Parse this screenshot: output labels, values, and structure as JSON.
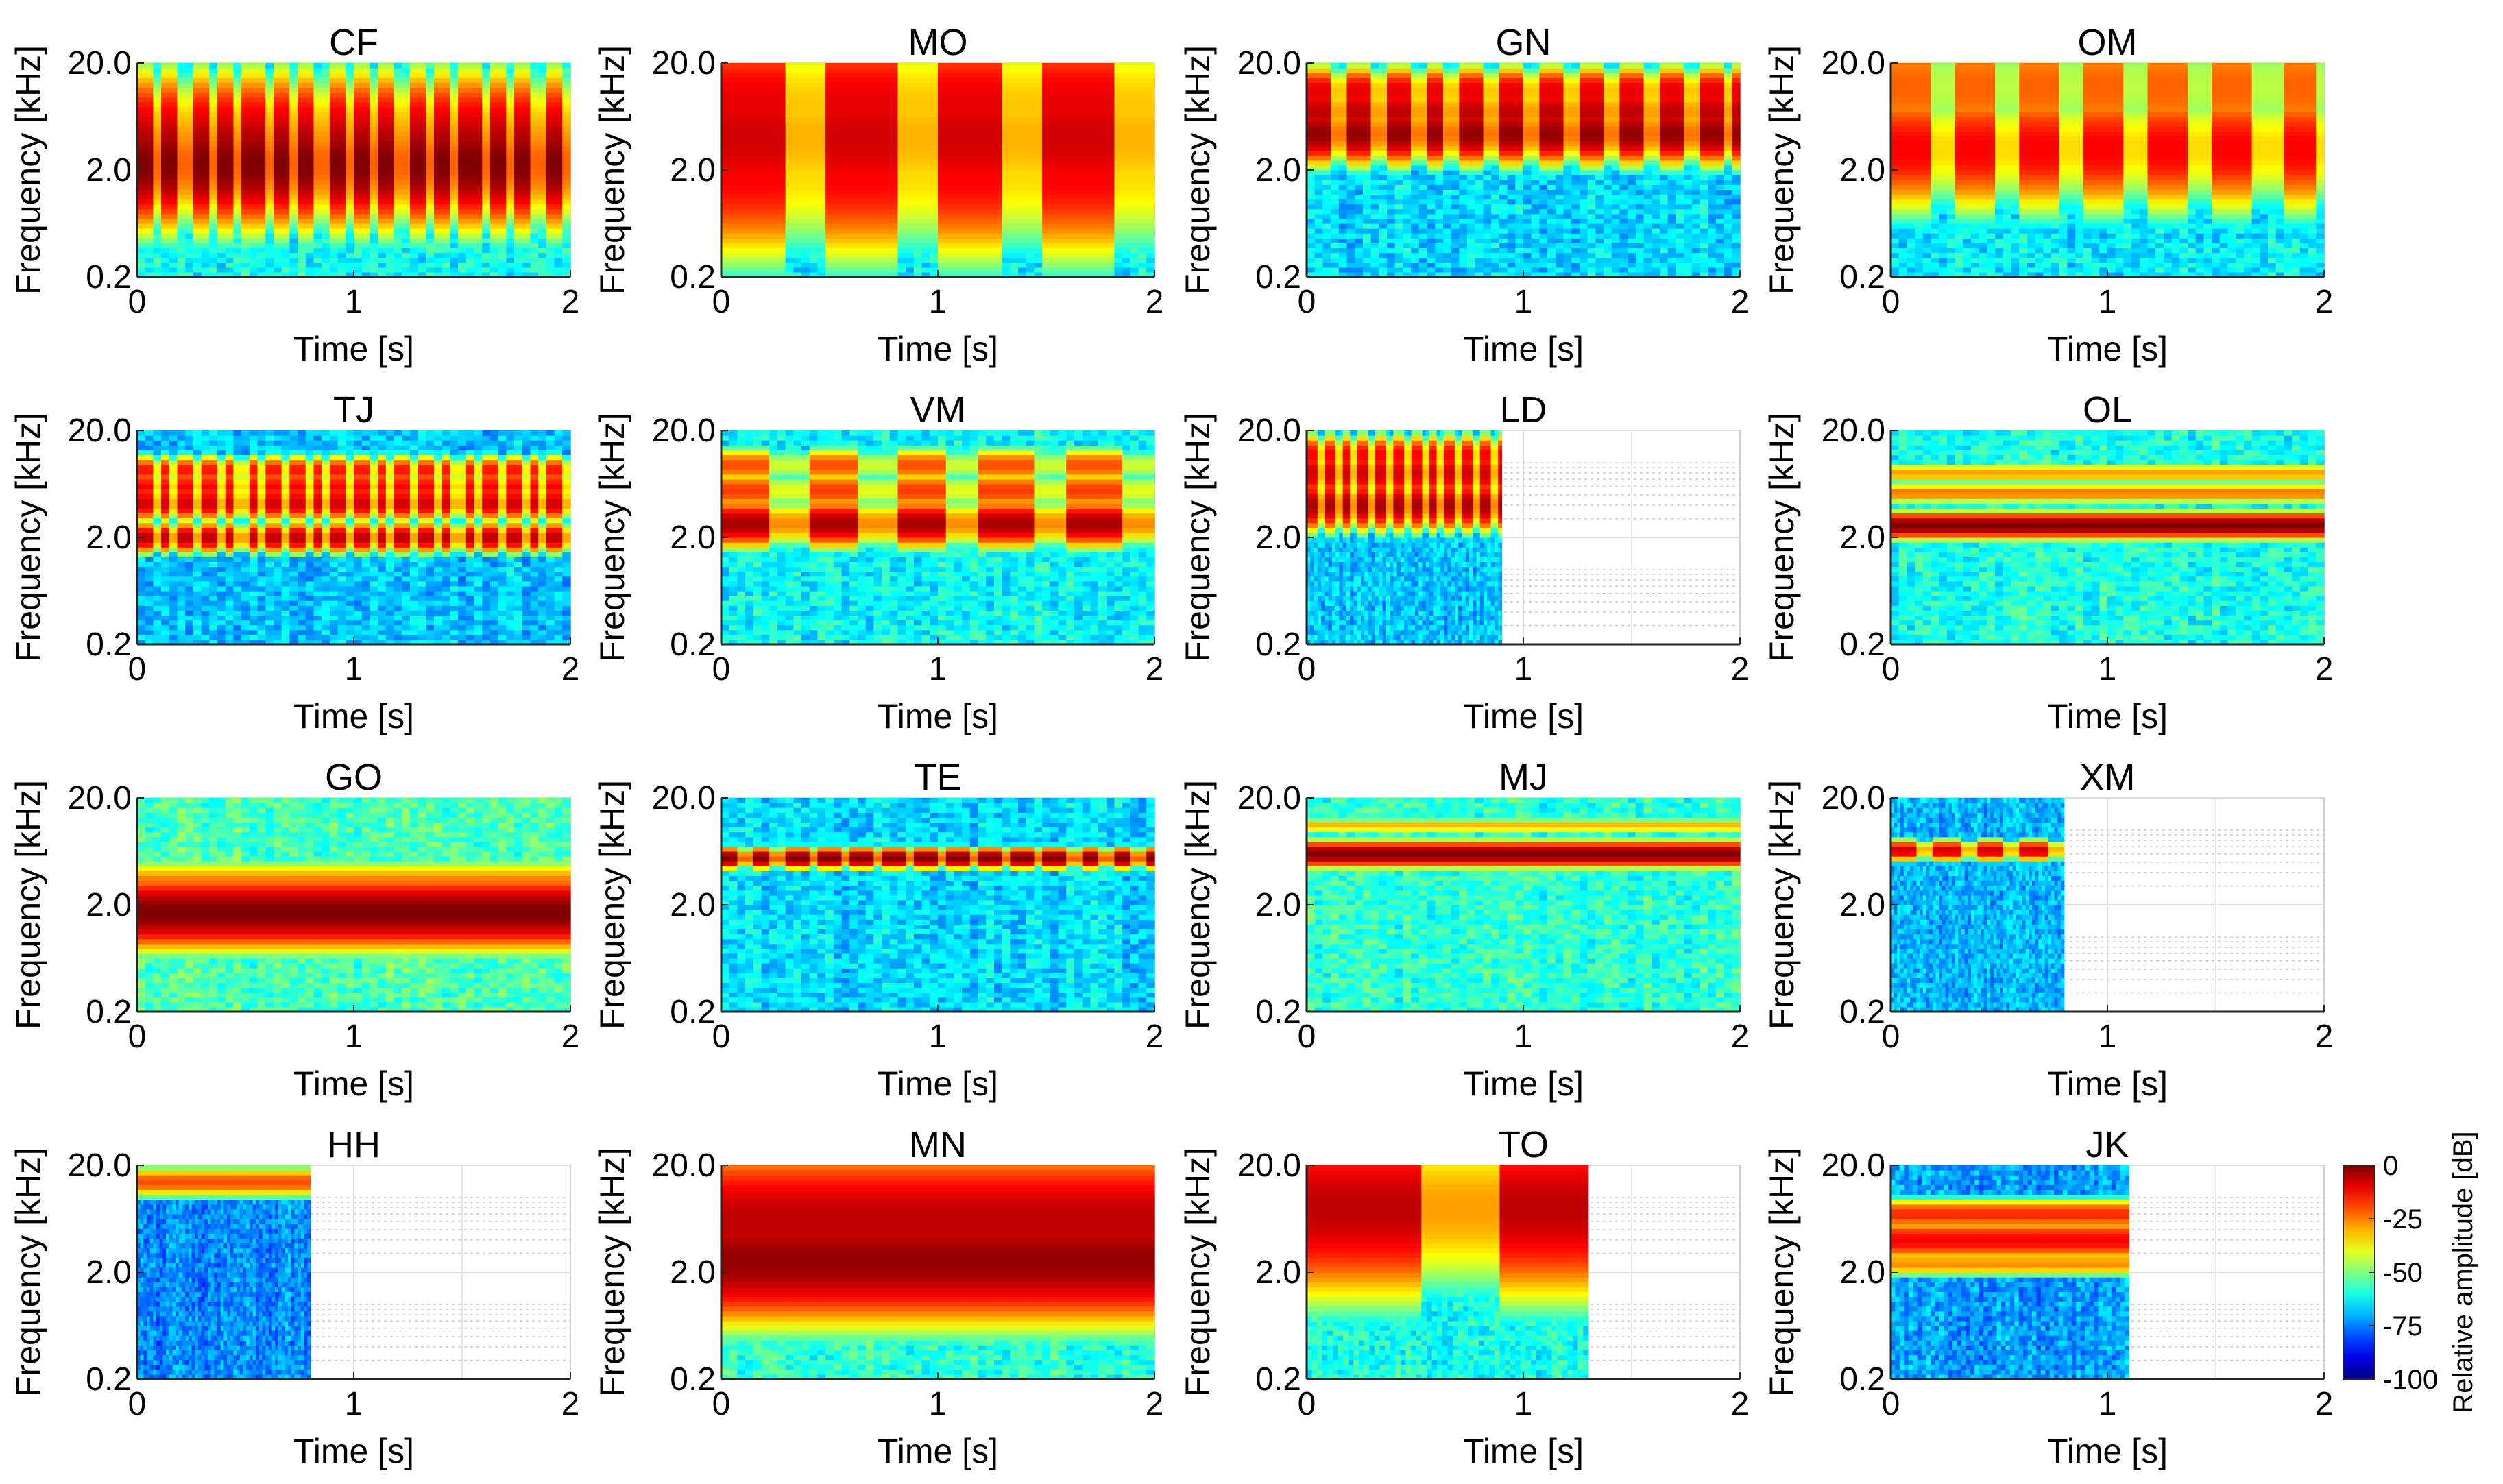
{
  "figure": {
    "type": "spectrogram-grid",
    "rows": 4,
    "cols": 4
  },
  "axes": {
    "xlabel": "Time [s]",
    "ylabel": "Frequency [kHz]",
    "xticks": [
      "0",
      "1",
      "2"
    ],
    "yticks": [
      "0.2",
      "2.0",
      "20.0"
    ]
  },
  "colorbar": {
    "label": "Relative amplitude [dB]",
    "ticks": [
      "0",
      "-25",
      "-50",
      "-75",
      "-100"
    ],
    "range": [
      -100,
      0
    ],
    "colormap": "jet"
  },
  "chart_data": [
    {
      "type": "heatmap",
      "title": "CF",
      "duration": 2.0,
      "noise": -62,
      "bands": [
        [
          2.3,
          0.25,
          0
        ],
        [
          3.3,
          0.25,
          -4
        ],
        [
          4.5,
          0.25,
          -8
        ],
        [
          6.0,
          0.2,
          -14
        ]
      ],
      "pulse_period": 0.125
    },
    {
      "type": "heatmap",
      "title": "MO",
      "duration": 2.0,
      "noise": -64,
      "bands": [
        [
          1.9,
          0.35,
          -12
        ],
        [
          4.0,
          0.4,
          -8
        ],
        [
          8.0,
          0.35,
          -10
        ]
      ],
      "pulse_period": 0.5
    },
    {
      "type": "heatmap",
      "title": "GN",
      "duration": 2.0,
      "noise": -66,
      "bands": [
        [
          4.4,
          0.12,
          -2
        ],
        [
          7.0,
          0.12,
          -6
        ],
        [
          11.0,
          0.1,
          -10
        ]
      ],
      "pulse_period": 0.18
    },
    {
      "type": "heatmap",
      "title": "OM",
      "duration": 2.0,
      "noise": -64,
      "bands": [
        [
          3.2,
          0.25,
          -12
        ],
        [
          12.0,
          0.3,
          -22
        ]
      ],
      "pulse_period": 0.3
    },
    {
      "type": "heatmap",
      "title": "TJ",
      "duration": 2.0,
      "noise": -68,
      "bands": [
        [
          2.0,
          0.06,
          -6
        ],
        [
          4.2,
          0.07,
          -8
        ],
        [
          6.0,
          0.06,
          -12
        ],
        [
          8.5,
          0.06,
          -14
        ]
      ],
      "pulse_period": 0.1
    },
    {
      "type": "heatmap",
      "title": "VM",
      "duration": 2.0,
      "noise": -62,
      "bands": [
        [
          2.7,
          0.09,
          -4
        ],
        [
          5.5,
          0.08,
          -18
        ],
        [
          9.5,
          0.07,
          -20
        ]
      ],
      "pulse_period": 0.4
    },
    {
      "type": "heatmap",
      "title": "LD",
      "duration": 0.9,
      "noise": -68,
      "bands": [
        [
          4.0,
          0.1,
          -4
        ],
        [
          8.0,
          0.1,
          -8
        ],
        [
          12.0,
          0.08,
          -12
        ]
      ],
      "pulse_period": 0.08
    },
    {
      "type": "heatmap",
      "title": "OL",
      "duration": 2.0,
      "noise": -60,
      "bands": [
        [
          2.6,
          0.05,
          0
        ],
        [
          5.2,
          0.04,
          -24
        ],
        [
          8.0,
          0.04,
          -28
        ]
      ],
      "pulse_period": 0
    },
    {
      "type": "heatmap",
      "title": "GO",
      "duration": 2.0,
      "noise": -55,
      "bands": [
        [
          1.7,
          0.14,
          0
        ],
        [
          3.0,
          0.1,
          -22
        ]
      ],
      "pulse_period": 0
    },
    {
      "type": "heatmap",
      "title": "TE",
      "duration": 2.0,
      "noise": -66,
      "bands": [
        [
          5.5,
          0.04,
          0
        ]
      ],
      "pulse_period": 0.15
    },
    {
      "type": "heatmap",
      "title": "MJ",
      "duration": 2.0,
      "noise": -58,
      "bands": [
        [
          6.0,
          0.05,
          0
        ],
        [
          11.0,
          0.03,
          -30
        ]
      ],
      "pulse_period": 0
    },
    {
      "type": "heatmap",
      "title": "XM",
      "duration": 0.8,
      "noise": -70,
      "bands": [
        [
          6.5,
          0.04,
          -8
        ]
      ],
      "pulse_period": 0.2
    },
    {
      "type": "heatmap",
      "title": "HH",
      "duration": 0.8,
      "noise": -74,
      "bands": [
        [
          14.0,
          0.06,
          -20
        ]
      ],
      "pulse_period": 0
    },
    {
      "type": "heatmap",
      "title": "MN",
      "duration": 2.0,
      "noise": -58,
      "bands": [
        [
          2.6,
          0.25,
          -2
        ],
        [
          6.0,
          0.3,
          -6
        ],
        [
          10.0,
          0.2,
          -14
        ]
      ],
      "pulse_period": 0
    },
    {
      "type": "heatmap",
      "title": "TO",
      "duration": 1.3,
      "noise": -60,
      "bands": [
        [
          8.0,
          0.35,
          -6
        ],
        [
          15.0,
          0.25,
          -14
        ]
      ],
      "pulse_period": 0.9
    },
    {
      "type": "heatmap",
      "title": "JK",
      "duration": 1.1,
      "noise": -72,
      "bands": [
        [
          4.0,
          0.08,
          -12
        ],
        [
          7.0,
          0.06,
          -16
        ],
        [
          2.4,
          0.05,
          -26
        ]
      ],
      "pulse_period": 0
    }
  ]
}
